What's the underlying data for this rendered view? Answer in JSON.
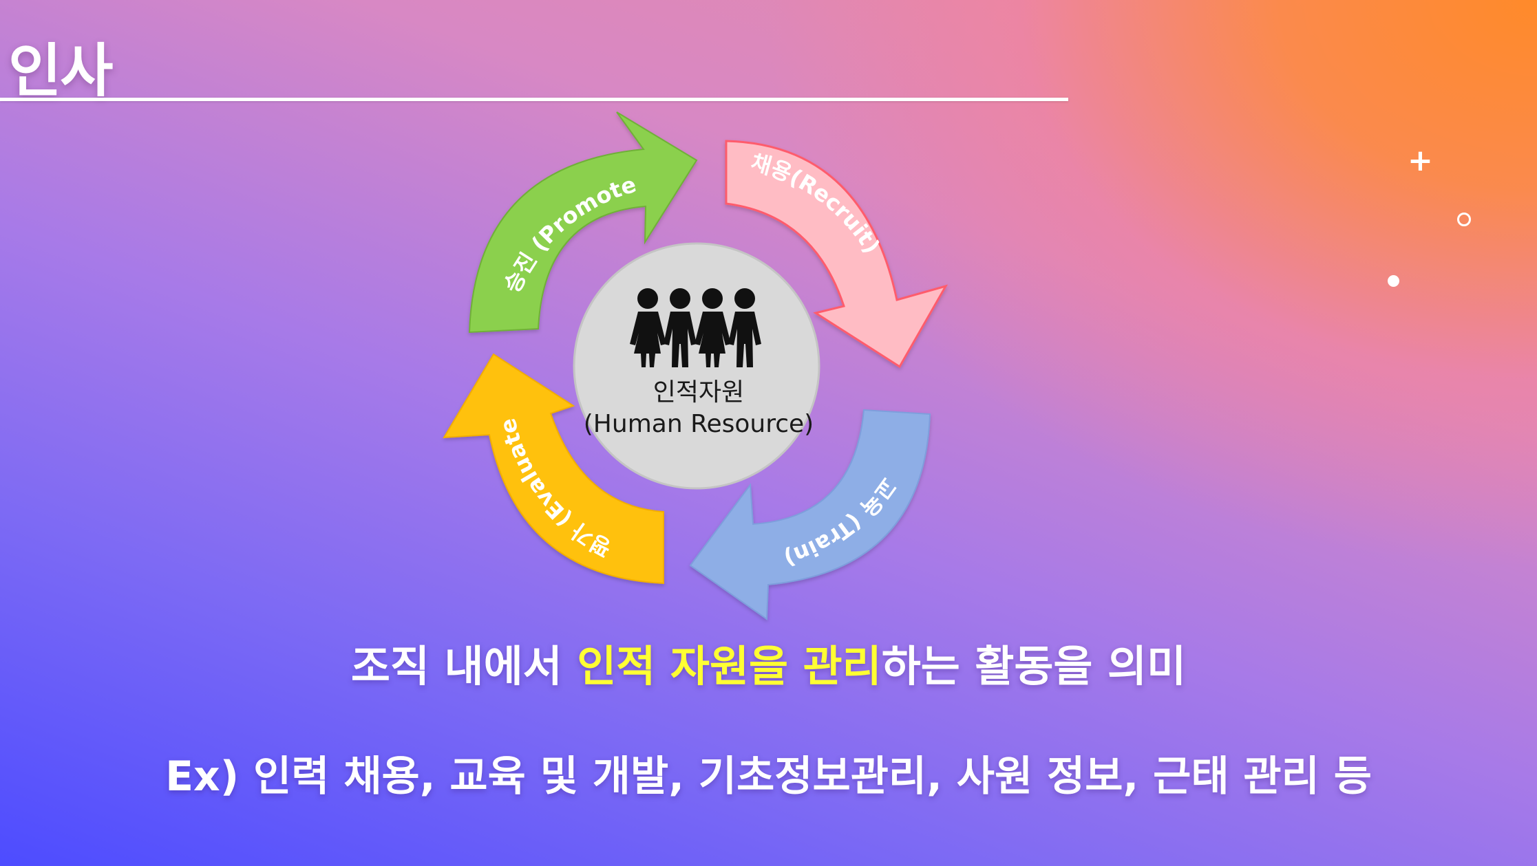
{
  "slide": {
    "title": "인사"
  },
  "cycle": {
    "arrows": [
      {
        "label": "승진 (Promote)",
        "color": "#8bd04e"
      },
      {
        "label": "채용(Recruit)",
        "color": "#ffbcc4"
      },
      {
        "label": "교육 (Train)",
        "color": "#8eaee6"
      },
      {
        "label": "평가 (Evaluate)",
        "color": "#ffc10c"
      }
    ],
    "center": {
      "icon": "people-group-icon",
      "label_ko": "인적자원",
      "label_en": "(Human Resource)"
    }
  },
  "summary": {
    "prefix": "조직 내에서 ",
    "highlight": "인적 자원을 관리",
    "suffix": "하는 활동을 의미",
    "highlight_color": "#ffff33"
  },
  "example": {
    "text": "Ex) 인력 채용, 교육 및 개발, 기초정보관리, 사원 정보, 근태 관리 등"
  }
}
